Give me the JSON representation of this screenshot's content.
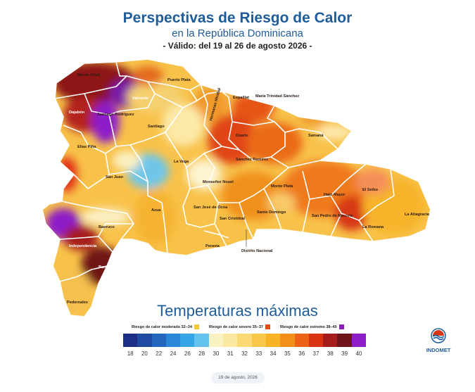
{
  "header": {
    "title": "Perspectivas de Riesgo de Calor",
    "subtitle": "en la República Dominicana",
    "validity": "- Válido: del 19 al 26 de agosto 2026 -"
  },
  "map": {
    "provinces": [
      {
        "name": "Monte Cristi",
        "risk": "extremo"
      },
      {
        "name": "Puerto Plata",
        "risk": "moderado"
      },
      {
        "name": "Valverde",
        "risk": "extremo"
      },
      {
        "name": "Dajabón",
        "risk": "extremo"
      },
      {
        "name": "Santiago Rodríguez",
        "risk": "extremo"
      },
      {
        "name": "Santiago",
        "risk": "moderado"
      },
      {
        "name": "Espaillat",
        "risk": "moderado"
      },
      {
        "name": "María Trinidad Sánchez",
        "risk": "severo"
      },
      {
        "name": "Hermanas Mirabal",
        "risk": "severo"
      },
      {
        "name": "Duarte",
        "risk": "severo"
      },
      {
        "name": "Samaná",
        "risk": "moderado"
      },
      {
        "name": "Elías Piña",
        "risk": "moderado"
      },
      {
        "name": "San Juan",
        "risk": "moderado"
      },
      {
        "name": "La Vega",
        "risk": "moderado"
      },
      {
        "name": "Sánchez Ramírez",
        "risk": "severo"
      },
      {
        "name": "Monseñor Nouel",
        "risk": "moderado"
      },
      {
        "name": "Monte Plata",
        "risk": "severo"
      },
      {
        "name": "Hato Mayor",
        "risk": "severo"
      },
      {
        "name": "El Seibo",
        "risk": "moderado"
      },
      {
        "name": "Azua",
        "risk": "moderado"
      },
      {
        "name": "San José de Ocoa",
        "risk": "moderado"
      },
      {
        "name": "San Cristóbal",
        "risk": "moderado"
      },
      {
        "name": "Santo Domingo",
        "risk": "severo"
      },
      {
        "name": "San Pedro de Macorís",
        "risk": "severo"
      },
      {
        "name": "La Romana",
        "risk": "moderado"
      },
      {
        "name": "La Altagracia",
        "risk": "moderado"
      },
      {
        "name": "Baoruco",
        "risk": "moderado"
      },
      {
        "name": "Independencia",
        "risk": "extremo"
      },
      {
        "name": "Barahona",
        "risk": "severo"
      },
      {
        "name": "Peravia",
        "risk": "moderado"
      },
      {
        "name": "Distrito Nacional",
        "risk": "severo"
      },
      {
        "name": "Pedernales",
        "risk": "moderado"
      }
    ]
  },
  "legend": {
    "title": "Temperaturas máximas",
    "categories": [
      {
        "label": "Riesgo de calor moderado 32–34",
        "color": "#f8c73a"
      },
      {
        "label": "Riesgo de calor severo 35–37",
        "color": "#e54a12"
      },
      {
        "label": "Riesgo de calor extremo 38–40",
        "color": "#8b1fb8"
      }
    ],
    "scale": [
      {
        "value": "18",
        "color": "#1c2f86"
      },
      {
        "value": "20",
        "color": "#1f4aa2"
      },
      {
        "value": "22",
        "color": "#2266bd"
      },
      {
        "value": "24",
        "color": "#2a86d6"
      },
      {
        "value": "26",
        "color": "#35a5e6"
      },
      {
        "value": "28",
        "color": "#63c2ee"
      },
      {
        "value": "30",
        "color": "#fbf2c4"
      },
      {
        "value": "31",
        "color": "#fbe9a2"
      },
      {
        "value": "32",
        "color": "#fcd975"
      },
      {
        "value": "33",
        "color": "#f9c748"
      },
      {
        "value": "34",
        "color": "#f7b324"
      },
      {
        "value": "35",
        "color": "#f38e1a"
      },
      {
        "value": "36",
        "color": "#ec6216"
      },
      {
        "value": "37",
        "color": "#d83414"
      },
      {
        "value": "38",
        "color": "#a51c1c"
      },
      {
        "value": "39",
        "color": "#6f1418"
      },
      {
        "value": "40",
        "color": "#8d1ec8"
      }
    ]
  },
  "branding": {
    "agency": "INDOMET"
  },
  "footer": {
    "date": "19 de agosto, 2026"
  }
}
